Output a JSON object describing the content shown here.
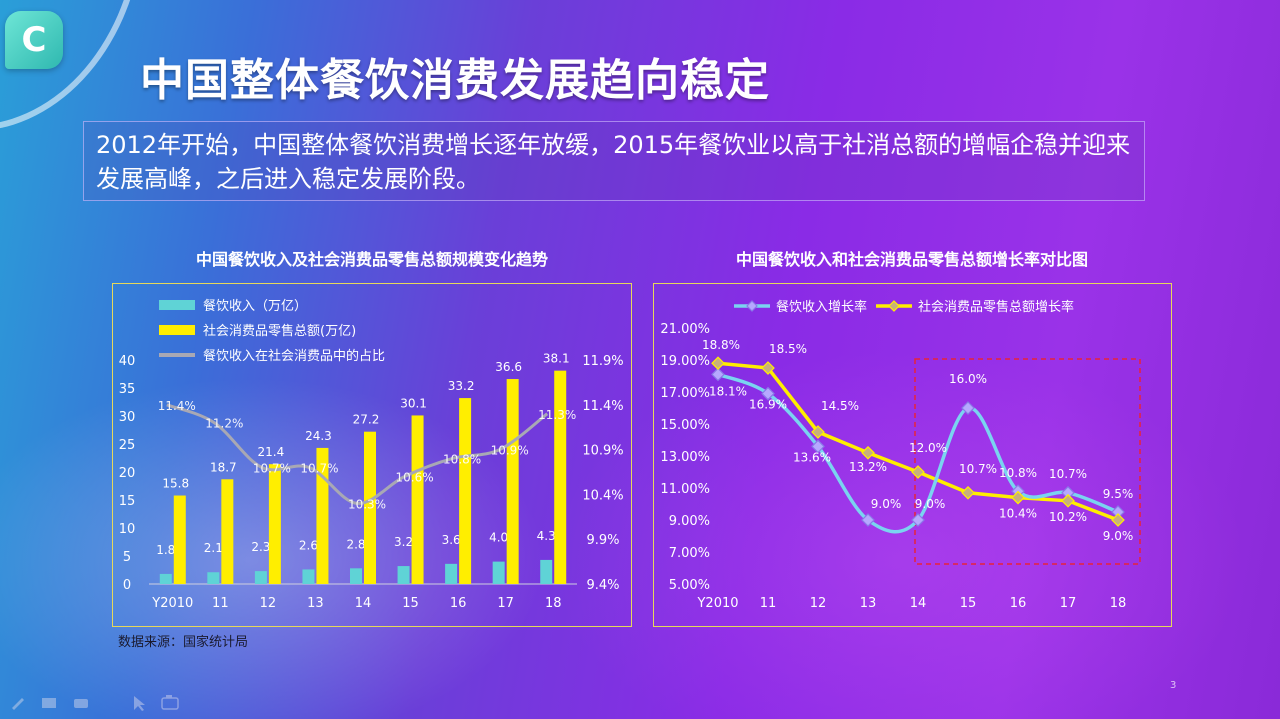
{
  "header": {
    "logo_letter": "C",
    "title": "中国整体餐饮消费发展趋向稳定"
  },
  "intro": {
    "text": "2012年开始，中国整体餐饮消费增长逐年放缓，2015年餐饮业以高于社消总额的增幅企稳并迎来发展高峰，之后进入稳定发展阶段。"
  },
  "source_note": "数据来源：国家统计局",
  "page_number": "3",
  "colors": {
    "cyan_bar": "#5fd3d6",
    "yellow": "#ffee00",
    "gray_line": "#a8a8b4",
    "blue_line": "#7ad4f0",
    "highlight_box": "#e8233a",
    "panel_border": "#e6d85a"
  },
  "toolbar_icons": [
    "pen-icon",
    "highlighter-icon",
    "eraser-icon",
    "pointer-icon",
    "camera-icon"
  ],
  "chart_data": [
    {
      "type": "bar",
      "title": "中国餐饮收入及社会消费品零售总额规模变化趋势",
      "categories": [
        "Y2010",
        "11",
        "12",
        "13",
        "14",
        "15",
        "16",
        "17",
        "18"
      ],
      "series": [
        {
          "name": "餐饮收入（万亿）",
          "type": "bar",
          "axis": "left",
          "values": [
            1.8,
            2.1,
            2.3,
            2.6,
            2.8,
            3.2,
            3.6,
            4.0,
            4.3
          ],
          "labels": [
            "1.8",
            "2.1",
            "2.3",
            "2.6",
            "2.8",
            "3.2",
            "3.6",
            "4.0",
            "4.3"
          ]
        },
        {
          "name": "社会消费品零售总额(万亿)",
          "type": "bar",
          "axis": "left",
          "values": [
            15.8,
            18.7,
            21.4,
            24.3,
            27.2,
            30.1,
            33.2,
            36.6,
            38.1
          ],
          "labels": [
            "15.8",
            "18.7",
            "21.4",
            "24.3",
            "27.2",
            "30.1",
            "33.2",
            "36.6",
            "38.1"
          ]
        },
        {
          "name": "餐饮收入在社会消费品中的占比",
          "type": "line",
          "axis": "right",
          "values": [
            11.4,
            11.2,
            10.7,
            10.7,
            10.3,
            10.6,
            10.8,
            10.9,
            11.3
          ],
          "labels": [
            "11.4%",
            "11.2%",
            "10.7%",
            "10.7%",
            "10.3%",
            "10.6%",
            "10.8%",
            "10.9%",
            "11.3%"
          ]
        }
      ],
      "ylim": [
        0,
        40
      ],
      "yticks": [
        "0",
        "5",
        "10",
        "15",
        "20",
        "25",
        "30",
        "35",
        "40"
      ],
      "y2lim": [
        9.4,
        11.9
      ],
      "y2ticks": [
        "9.4%",
        "9.9%",
        "10.4%",
        "10.9%",
        "11.4%",
        "11.9%"
      ],
      "legend": "top-left"
    },
    {
      "type": "line",
      "title": "中国餐饮收入和社会消费品零售总额增长率对比图",
      "categories": [
        "Y2010",
        "11",
        "12",
        "13",
        "14",
        "15",
        "16",
        "17",
        "18"
      ],
      "series": [
        {
          "name": "餐饮收入增长率",
          "values": [
            18.1,
            16.9,
            13.6,
            9.0,
            9.0,
            16.0,
            10.8,
            10.7,
            9.5
          ],
          "labels": [
            "18.1%",
            "16.9%",
            "13.6%",
            "9.0%",
            "9.0%",
            "16.0%",
            "10.8%",
            "10.7%",
            "9.5%"
          ]
        },
        {
          "name": "社会消费品零售总额增长率",
          "values": [
            18.8,
            18.5,
            14.5,
            13.2,
            12.0,
            10.7,
            10.4,
            10.2,
            9.0
          ],
          "labels": [
            "18.8%",
            "18.5%",
            "14.5%",
            "13.2%",
            "12.0%",
            "10.7%",
            "10.4%",
            "10.2%",
            "9.0%"
          ]
        }
      ],
      "ylim": [
        5,
        21
      ],
      "yticks": [
        "5.00%",
        "7.00%",
        "9.00%",
        "11.00%",
        "13.00%",
        "15.00%",
        "17.00%",
        "19.00%",
        "21.00%"
      ],
      "legend": "top",
      "highlight_range": [
        "14",
        "18"
      ]
    }
  ]
}
